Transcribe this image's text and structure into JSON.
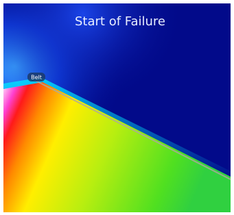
{
  "title": "Start of Failure",
  "label": "Belt"
}
